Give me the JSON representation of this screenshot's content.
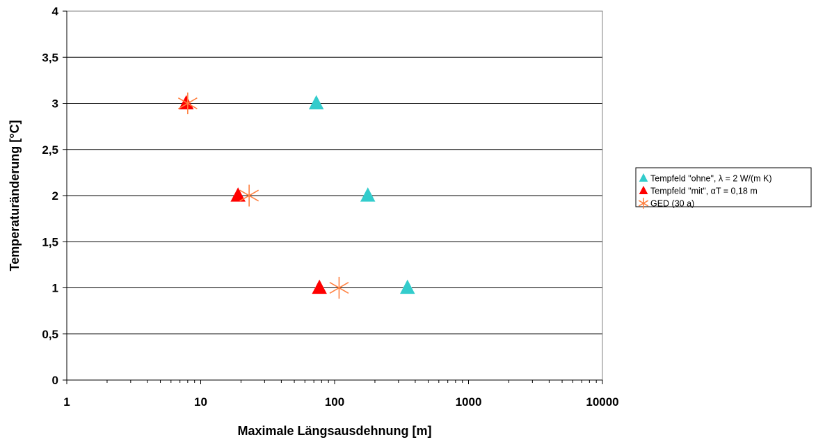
{
  "chart_data": {
    "type": "scatter",
    "xlabel": "Maximale Längsausdehnung [m]",
    "ylabel": "Temperaturänderung [°C]",
    "xscale": "log",
    "xlim": [
      1,
      10000
    ],
    "ylim": [
      0,
      4
    ],
    "grid": "horizontal major gridlines",
    "legend_position": "right",
    "x_tick_labels": [
      "1",
      "10",
      "100",
      "1000",
      "10000"
    ],
    "y_tick_labels": [
      "0",
      "0,5",
      "1",
      "1,5",
      "2",
      "2,5",
      "3",
      "3,5",
      "4"
    ],
    "series": [
      {
        "name": "Tempfeld \"ohne\", λ = 2 W/(m K)",
        "marker": "triangle",
        "color": "#33CCCC",
        "points": [
          {
            "x": 73,
            "y": 3
          },
          {
            "x": 177,
            "y": 2
          },
          {
            "x": 350,
            "y": 1
          }
        ]
      },
      {
        "name": "Tempfeld \"mit\", αT = 0,18 m",
        "marker": "triangle",
        "color": "#FF0000",
        "points": [
          {
            "x": 7.8,
            "y": 3
          },
          {
            "x": 19,
            "y": 2
          },
          {
            "x": 77,
            "y": 1
          }
        ]
      },
      {
        "name": "GED (30 a)",
        "marker": "asterisk",
        "color": "#FF8040",
        "points": [
          {
            "x": 8,
            "y": 3
          },
          {
            "x": 23,
            "y": 2
          },
          {
            "x": 108,
            "y": 1
          }
        ]
      }
    ]
  }
}
